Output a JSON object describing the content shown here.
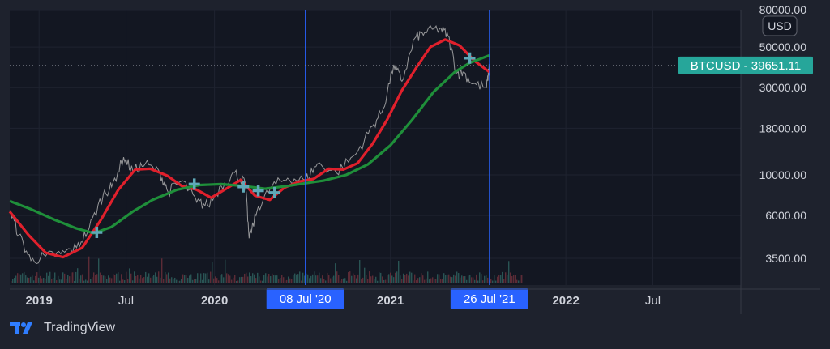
{
  "brand": {
    "name": "TradingView",
    "icon": "tradingview-logo-icon"
  },
  "currency_badge": "USD",
  "price_tag": {
    "symbol": "BTCUSD",
    "value": "39651.11",
    "color": "#26a69a"
  },
  "markers": {
    "left_date": "08 Jul '20",
    "right_date": "26 Jul '21",
    "color": "#2962ff"
  },
  "colors": {
    "background": "#131722",
    "frame": "#1e222d",
    "fast_ma": "#e0202c",
    "slow_ma": "#1f8f3a",
    "cross": "#5fa9b8",
    "text": "#d1d4dc"
  },
  "chart_data": {
    "type": "line",
    "symbol": "BTCUSD",
    "scale": "log",
    "ylim": [
      2500,
      80000
    ],
    "xlim": [
      "2018-11-01",
      "2022-12-31"
    ],
    "y_ticks": [
      {
        "value": 3500,
        "label": "3500.00"
      },
      {
        "value": 6000,
        "label": "6000.00"
      },
      {
        "value": 10000,
        "label": "10000.00"
      },
      {
        "value": 18000,
        "label": "18000.00"
      },
      {
        "value": 30000,
        "label": "30000.00"
      },
      {
        "value": 50000,
        "label": "50000.00"
      },
      {
        "value": 80000,
        "label": "80000.00"
      }
    ],
    "x_ticks": [
      {
        "date": "2019-01-01",
        "label": "2019"
      },
      {
        "date": "2019-07-01",
        "label": "Jul"
      },
      {
        "date": "2020-01-01",
        "label": "2020"
      },
      {
        "date": "2021-01-01",
        "label": "2021"
      },
      {
        "date": "2022-01-01",
        "label": "2022"
      },
      {
        "date": "2022-07-01",
        "label": "Jul"
      }
    ],
    "series": [
      {
        "name": "price",
        "color": "#b8b8b8",
        "points": [
          [
            "2018-11-01",
            6400
          ],
          [
            "2018-11-20",
            4700
          ],
          [
            "2018-12-15",
            3400
          ],
          [
            "2019-01-15",
            3600
          ],
          [
            "2019-02-15",
            3700
          ],
          [
            "2019-03-20",
            4000
          ],
          [
            "2019-04-15",
            5100
          ],
          [
            "2019-05-15",
            7900
          ],
          [
            "2019-06-01",
            8600
          ],
          [
            "2019-06-26",
            12500
          ],
          [
            "2019-07-15",
            10500
          ],
          [
            "2019-08-10",
            11500
          ],
          [
            "2019-09-10",
            10200
          ],
          [
            "2019-09-26",
            8100
          ],
          [
            "2019-10-26",
            9300
          ],
          [
            "2019-11-25",
            7100
          ],
          [
            "2019-12-18",
            6800
          ],
          [
            "2020-01-15",
            8700
          ],
          [
            "2020-02-12",
            10300
          ],
          [
            "2020-03-05",
            9000
          ],
          [
            "2020-03-13",
            4500
          ],
          [
            "2020-04-01",
            6700
          ],
          [
            "2020-04-30",
            8700
          ],
          [
            "2020-06-01",
            9600
          ],
          [
            "2020-07-08",
            9400
          ],
          [
            "2020-08-02",
            11500
          ],
          [
            "2020-09-10",
            10300
          ],
          [
            "2020-10-21",
            13000
          ],
          [
            "2020-11-25",
            18500
          ],
          [
            "2020-12-17",
            23000
          ],
          [
            "2021-01-08",
            40000
          ],
          [
            "2021-01-25",
            32500
          ],
          [
            "2021-02-21",
            56000
          ],
          [
            "2021-03-13",
            60000
          ],
          [
            "2021-04-14",
            63500
          ],
          [
            "2021-05-01",
            57500
          ],
          [
            "2021-05-19",
            36000
          ],
          [
            "2021-06-01",
            36500
          ],
          [
            "2021-06-22",
            31500
          ],
          [
            "2021-07-20",
            30000
          ],
          [
            "2021-07-26",
            39651.11
          ]
        ]
      },
      {
        "name": "fast moving average",
        "color": "#e0202c",
        "points": [
          [
            "2018-11-01",
            6300
          ],
          [
            "2018-12-10",
            4700
          ],
          [
            "2019-01-15",
            3750
          ],
          [
            "2019-02-20",
            3550
          ],
          [
            "2019-04-01",
            4000
          ],
          [
            "2019-05-10",
            5700
          ],
          [
            "2019-06-15",
            8300
          ],
          [
            "2019-07-20",
            10700
          ],
          [
            "2019-08-20",
            10800
          ],
          [
            "2019-09-25",
            9900
          ],
          [
            "2019-10-25",
            8700
          ],
          [
            "2019-11-25",
            8300
          ],
          [
            "2019-12-25",
            7500
          ],
          [
            "2020-01-25",
            8400
          ],
          [
            "2020-02-25",
            9400
          ],
          [
            "2020-03-25",
            7700
          ],
          [
            "2020-04-25",
            7300
          ],
          [
            "2020-05-25",
            8500
          ],
          [
            "2020-06-25",
            9200
          ],
          [
            "2020-07-25",
            9500
          ],
          [
            "2020-08-25",
            10800
          ],
          [
            "2020-09-25",
            10700
          ],
          [
            "2020-10-25",
            11600
          ],
          [
            "2020-11-25",
            14800
          ],
          [
            "2020-12-25",
            20000
          ],
          [
            "2021-01-25",
            29000
          ],
          [
            "2021-02-25",
            39000
          ],
          [
            "2021-03-25",
            50000
          ],
          [
            "2021-04-25",
            55000
          ],
          [
            "2021-05-25",
            51000
          ],
          [
            "2021-06-25",
            42000
          ],
          [
            "2021-07-26",
            36500
          ]
        ]
      },
      {
        "name": "slow moving average",
        "color": "#1f8f3a",
        "points": [
          [
            "2018-11-01",
            7200
          ],
          [
            "2018-12-15",
            6500
          ],
          [
            "2019-02-01",
            5700
          ],
          [
            "2019-03-20",
            5100
          ],
          [
            "2019-04-25",
            4800
          ],
          [
            "2019-06-01",
            5200
          ],
          [
            "2019-07-15",
            6300
          ],
          [
            "2019-08-25",
            7300
          ],
          [
            "2019-10-15",
            8300
          ],
          [
            "2019-12-01",
            8800
          ],
          [
            "2020-01-15",
            8900
          ],
          [
            "2020-03-01",
            8700
          ],
          [
            "2020-04-15",
            8400
          ],
          [
            "2020-06-01",
            8700
          ],
          [
            "2020-07-08",
            9000
          ],
          [
            "2020-08-15",
            9300
          ],
          [
            "2020-10-01",
            10000
          ],
          [
            "2020-11-15",
            11400
          ],
          [
            "2021-01-01",
            14500
          ],
          [
            "2021-02-15",
            20000
          ],
          [
            "2021-04-01",
            28500
          ],
          [
            "2021-05-15",
            36500
          ],
          [
            "2021-06-15",
            41000
          ],
          [
            "2021-07-26",
            45000
          ]
        ]
      }
    ],
    "crossovers": [
      [
        "2019-05-01",
        4850
      ],
      [
        "2019-11-20",
        8900
      ],
      [
        "2020-03-01",
        8600
      ],
      [
        "2020-04-01",
        8200
      ],
      [
        "2020-05-05",
        8000
      ],
      [
        "2021-06-15",
        43500
      ]
    ]
  }
}
